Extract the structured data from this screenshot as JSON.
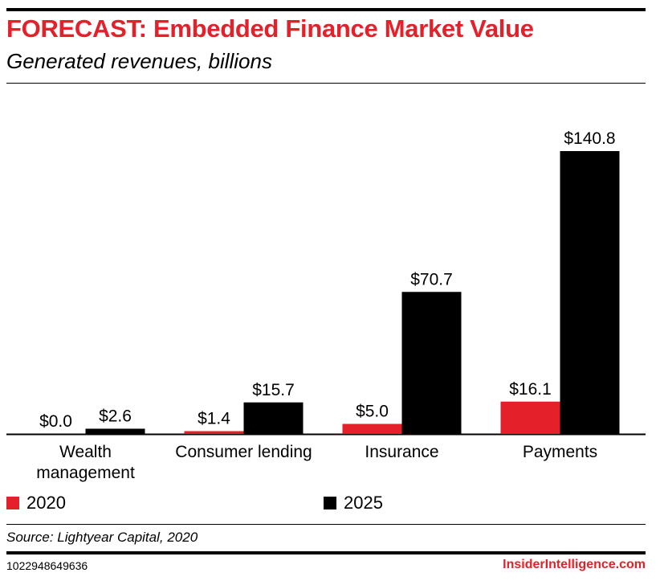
{
  "header": {
    "title": "FORECAST: Embedded Finance Market Value",
    "subtitle": "Generated revenues, billions"
  },
  "colors": {
    "accent": "#e4202a",
    "series_2020": "#e4202a",
    "series_2025": "#000000"
  },
  "chart_data": {
    "type": "bar",
    "title": "FORECAST: Embedded Finance Market Value",
    "subtitle": "Generated revenues, billions",
    "xlabel": "",
    "ylabel": "Generated revenues, billions",
    "ylim": [
      0,
      160
    ],
    "grid": false,
    "legend_position": "bottom",
    "categories": [
      [
        "Wealth",
        "management"
      ],
      [
        "Consumer lending"
      ],
      [
        "Insurance"
      ],
      [
        "Payments"
      ]
    ],
    "series": [
      {
        "name": "2020",
        "color": "#e4202a",
        "values": [
          0.0,
          1.4,
          5.0,
          16.1
        ],
        "labels": [
          "$0.0",
          "$1.4",
          "$5.0",
          "$16.1"
        ]
      },
      {
        "name": "2025",
        "color": "#000000",
        "values": [
          2.6,
          15.7,
          70.7,
          140.8
        ],
        "labels": [
          "$2.6",
          "$15.7",
          "$70.7",
          "$140.8"
        ]
      }
    ]
  },
  "legend": {
    "items": [
      {
        "label": "2020",
        "color": "#e4202a"
      },
      {
        "label": "2025",
        "color": "#000000"
      }
    ]
  },
  "footer": {
    "source": "Source: Lightyear Capital, 2020",
    "chart_id": "1022948649636",
    "brand": "InsiderIntelligence.com"
  }
}
